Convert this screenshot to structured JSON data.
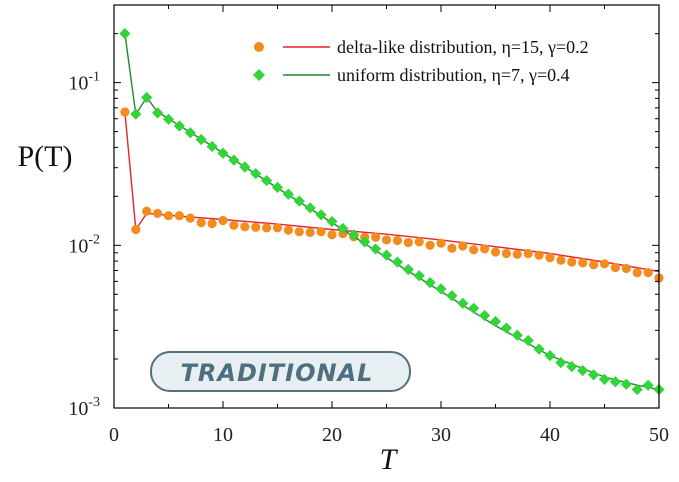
{
  "chart_data": {
    "type": "scatter",
    "title": "",
    "xlabel": "T",
    "ylabel": "P(T)",
    "xlim": [
      0,
      50
    ],
    "ylim": [
      0.001,
      0.3
    ],
    "yscale": "log",
    "xticks": [
      {
        "v": 0,
        "label": "0"
      },
      {
        "v": 10,
        "label": "10"
      },
      {
        "v": 20,
        "label": "20"
      },
      {
        "v": 30,
        "label": "30"
      },
      {
        "v": 40,
        "label": "40"
      },
      {
        "v": 50,
        "label": "50"
      }
    ],
    "yticks": [
      {
        "v": 0.001,
        "base": "10",
        "exp": "-3"
      },
      {
        "v": 0.01,
        "base": "10",
        "exp": "-2"
      },
      {
        "v": 0.1,
        "base": "10",
        "exp": "-1"
      }
    ],
    "grid": false,
    "legend_position": "top-right",
    "series": [
      {
        "name": "delta-like distribution, η=15, γ=0.2",
        "marker": "circle",
        "marker_color": "#f28c1e",
        "line_color": "#e8232b",
        "x": [
          1,
          2,
          3,
          4,
          5,
          6,
          7,
          8,
          9,
          10,
          11,
          12,
          13,
          14,
          15,
          16,
          17,
          18,
          19,
          20,
          21,
          22,
          23,
          24,
          25,
          26,
          27,
          28,
          29,
          30,
          31,
          32,
          33,
          34,
          35,
          36,
          37,
          38,
          39,
          40,
          41,
          42,
          43,
          44,
          45,
          46,
          47,
          48,
          49,
          50
        ],
        "y": [
          0.066,
          0.0125,
          0.0162,
          0.0157,
          0.0152,
          0.0152,
          0.0147,
          0.0138,
          0.0136,
          0.0142,
          0.0133,
          0.013,
          0.0129,
          0.0128,
          0.0128,
          0.0124,
          0.0121,
          0.012,
          0.0121,
          0.0116,
          0.0118,
          0.0113,
          0.0112,
          0.0112,
          0.0108,
          0.0107,
          0.0104,
          0.0105,
          0.01,
          0.0103,
          0.0096,
          0.0099,
          0.0094,
          0.0095,
          0.0091,
          0.0089,
          0.0088,
          0.0089,
          0.0087,
          0.0084,
          0.0081,
          0.0079,
          0.0078,
          0.0076,
          0.0077,
          0.0073,
          0.0072,
          0.0068,
          0.0068,
          0.0063
        ],
        "fit_x": [
          1,
          2,
          3,
          4,
          5,
          10,
          15,
          20,
          25,
          30,
          35,
          40,
          45,
          50
        ],
        "fit_y": [
          0.066,
          0.0125,
          0.0157,
          0.0155,
          0.0153,
          0.0144,
          0.0135,
          0.0125,
          0.0117,
          0.0108,
          0.0098,
          0.0089,
          0.0079,
          0.0069
        ]
      },
      {
        "name": "uniform distribution, η=7, γ=0.4",
        "marker": "diamond",
        "marker_color": "#33d43a",
        "line_color": "#218a2a",
        "x": [
          1,
          2,
          3,
          4,
          5,
          6,
          7,
          8,
          9,
          10,
          11,
          12,
          13,
          14,
          15,
          16,
          17,
          18,
          19,
          20,
          21,
          22,
          23,
          24,
          25,
          26,
          27,
          28,
          29,
          30,
          31,
          32,
          33,
          34,
          35,
          36,
          37,
          38,
          39,
          40,
          41,
          42,
          43,
          44,
          45,
          46,
          47,
          48,
          49,
          50
        ],
        "y": [
          0.2,
          0.064,
          0.081,
          0.0652,
          0.0595,
          0.0541,
          0.0492,
          0.0447,
          0.0405,
          0.0368,
          0.0334,
          0.0303,
          0.0276,
          0.025,
          0.0227,
          0.0206,
          0.0187,
          0.017,
          0.0154,
          0.014,
          0.0127,
          0.0116,
          0.0105,
          0.0095,
          0.0087,
          0.0079,
          0.0071,
          0.0065,
          0.0059,
          0.0054,
          0.0049,
          0.0044,
          0.0041,
          0.0037,
          0.0034,
          0.0031,
          0.0028,
          0.0026,
          0.0023,
          0.0021,
          0.0019,
          0.0018,
          0.0017,
          0.0016,
          0.0015,
          0.00145,
          0.0014,
          0.0013,
          0.00138,
          0.0013
        ],
        "fit_x": [
          1,
          2,
          3,
          4,
          5,
          10,
          15,
          20,
          25,
          30,
          35,
          40,
          45,
          48,
          50
        ],
        "fit_y": [
          0.2,
          0.064,
          0.081,
          0.066,
          0.06,
          0.037,
          0.0225,
          0.0138,
          0.0084,
          0.0052,
          0.0032,
          0.0021,
          0.00155,
          0.00138,
          0.0013
        ]
      }
    ]
  },
  "badge": {
    "label": "TRADITIONAL"
  }
}
